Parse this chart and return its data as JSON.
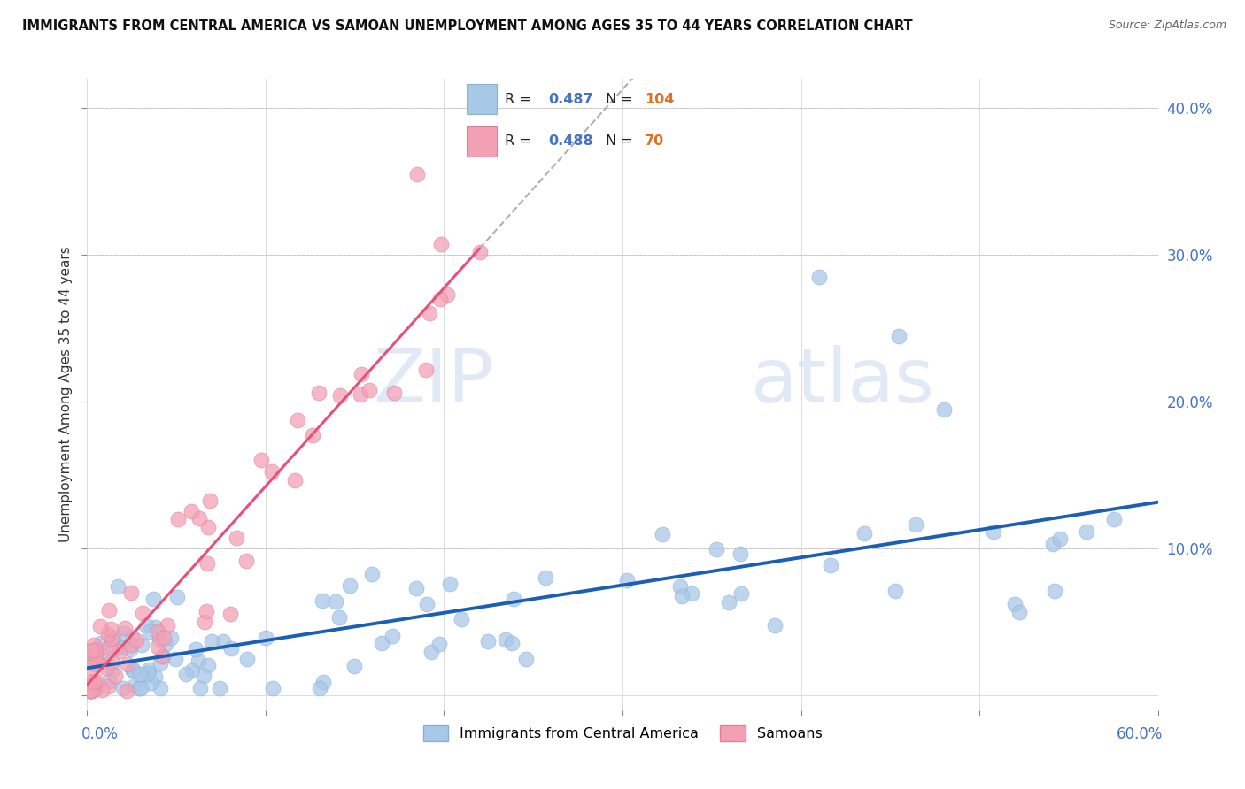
{
  "title": "IMMIGRANTS FROM CENTRAL AMERICA VS SAMOAN UNEMPLOYMENT AMONG AGES 35 TO 44 YEARS CORRELATION CHART",
  "source": "Source: ZipAtlas.com",
  "ylabel": "Unemployment Among Ages 35 to 44 years",
  "xlim": [
    0.0,
    0.6
  ],
  "ylim": [
    -0.01,
    0.42
  ],
  "legend_blue_r": "0.487",
  "legend_blue_n": "104",
  "legend_pink_r": "0.488",
  "legend_pink_n": "70",
  "blue_color": "#a8c8e8",
  "pink_color": "#f4a0b4",
  "blue_line_color": "#1a5fb4",
  "pink_line_color": "#e8507a",
  "watermark_zip": "ZIP",
  "watermark_atlas": "atlas",
  "blue_intercept": 0.022,
  "blue_slope": 0.145,
  "pink_intercept": 0.005,
  "pink_slope": 1.35
}
